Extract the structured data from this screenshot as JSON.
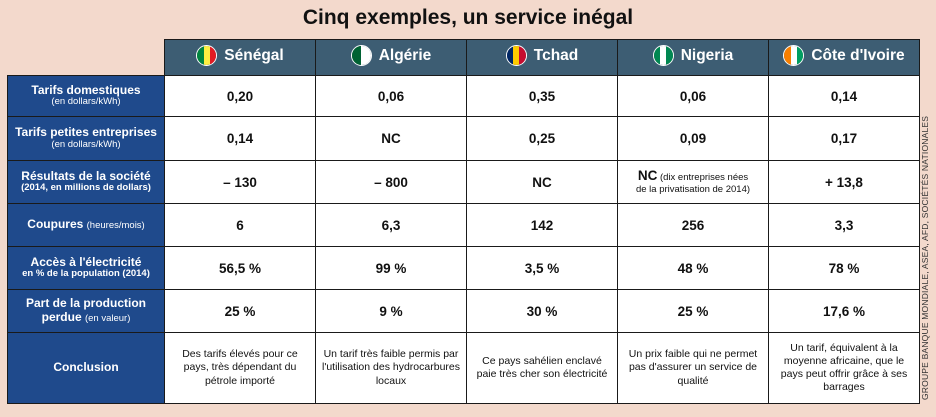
{
  "title": "Cinq exemples, un service inégal",
  "source": "GROUPE BANQUE MONDIALE, ASEA, AFD, SOCIÉTÉS NATIONALES",
  "countries": [
    {
      "name": "Sénégal",
      "flag": [
        "#00853f",
        "#fdef42",
        "#e31b23"
      ],
      "flag_icon": "senegal-flag-icon"
    },
    {
      "name": "Algérie",
      "flag": [
        "#006233",
        "#ffffff"
      ],
      "flag_icon": "algeria-flag-icon"
    },
    {
      "name": "Tchad",
      "flag": [
        "#002664",
        "#fecb00",
        "#c60c30"
      ],
      "flag_icon": "chad-flag-icon"
    },
    {
      "name": "Nigeria",
      "flag": [
        "#008751",
        "#ffffff",
        "#008751"
      ],
      "flag_icon": "nigeria-flag-icon"
    },
    {
      "name": "Côte d'Ivoire",
      "flag": [
        "#f77f00",
        "#ffffff",
        "#009e60"
      ],
      "flag_icon": "ivory-coast-flag-icon"
    }
  ],
  "rows": [
    {
      "label": "Tarifs domestiques",
      "sub": "(en dollars/kWh)",
      "values": [
        "0,20",
        "0,06",
        "0,35",
        "0,06",
        "0,14"
      ]
    },
    {
      "label": "Tarifs petites entreprises",
      "sub": "(en dollars/kWh)",
      "values": [
        "0,14",
        "NC",
        "0,25",
        "0,09",
        "0,17"
      ]
    },
    {
      "label": "Résultats de la société",
      "sub": "(2014, en millions de dollars)",
      "values": [
        "– 130",
        "– 800",
        "NC",
        "NC",
        "+ 13,8"
      ],
      "nigeria_note_a": "(dix entreprises nées",
      "nigeria_note_b": "de la privatisation de 2014)"
    },
    {
      "label": "Coupures",
      "sub": "(heures/mois)",
      "values": [
        "6",
        "6,3",
        "142",
        "256",
        "3,3"
      ]
    },
    {
      "label": "Accès à l'électricité",
      "sub": "en % de la population (2014)",
      "values": [
        "56,5 %",
        "99 %",
        "3,5 %",
        "48 %",
        "78 %"
      ]
    },
    {
      "label_a": "Part de la production",
      "label_b": "perdue",
      "sub": "(en valeur)",
      "values": [
        "25 %",
        "9 %",
        "30 %",
        "25 %",
        "17,6 %"
      ]
    },
    {
      "label": "Conclusion",
      "values": [
        "Des tarifs élevés pour ce pays, très dépendant du pétrole importé",
        "Un tarif très faible permis par l'utilisation des hydrocarbures locaux",
        "Ce pays sahélien enclavé paie très cher son électricité",
        "Un prix faible qui ne permet pas d'assurer un service de qualité",
        "Un tarif, équivalent à la moyenne africaine, que le pays peut offrir grâce à ses barrages"
      ]
    }
  ]
}
